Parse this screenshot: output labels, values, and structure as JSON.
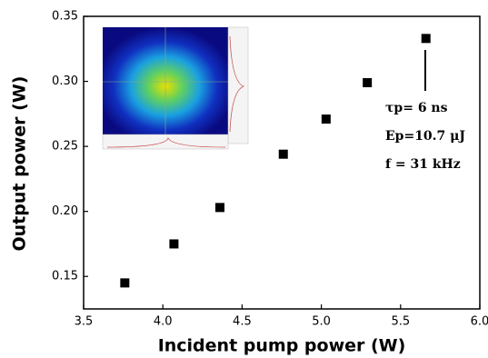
{
  "chart_data": {
    "type": "scatter",
    "x_label": "Incident pump power (W)",
    "y_label": "Output power (W)",
    "x": [
      3.76,
      4.07,
      4.36,
      4.76,
      5.03,
      5.29,
      5.66
    ],
    "values": [
      0.145,
      0.175,
      0.203,
      0.244,
      0.271,
      0.299,
      0.333
    ],
    "color": "#000000",
    "xlim": [
      3.5,
      6.0
    ],
    "ylim": [
      0.125,
      0.35
    ],
    "xticks": [
      3.5,
      {
        "value": 4,
        "label": "4.0"
      },
      4.5,
      {
        "value": 5,
        "label": "5.0"
      },
      5.5,
      {
        "value": 6,
        "label": "6.0"
      }
    ],
    "yticks": [
      0.15,
      {
        "value": 0.2,
        "label": "0.20"
      },
      0.25,
      {
        "value": 0.3,
        "label": "0.30"
      },
      0.35
    ],
    "annotations": [
      "τp= 6 ns",
      "Ep=10.7 μJ",
      "f = 31 kHz"
    ]
  }
}
